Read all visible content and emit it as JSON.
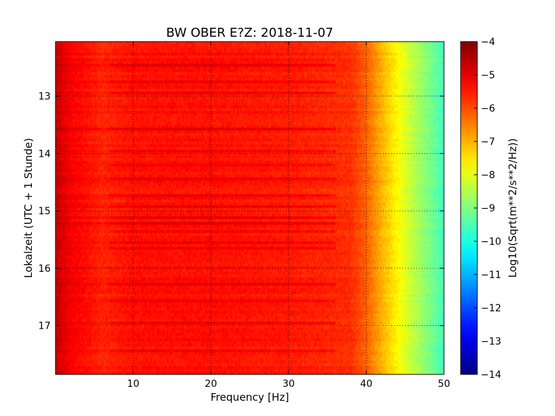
{
  "chart_data": {
    "type": "heatmap",
    "title": "BW OBER E?Z: 2018-11-07",
    "xlabel": "Frequency [Hz]",
    "ylabel": "Lokalzeit (UTC + 1 Stunde)",
    "xlim": [
      0,
      50
    ],
    "ylim": [
      12.05,
      17.85
    ],
    "y_inverted": true,
    "x_ticks": [
      10,
      20,
      30,
      40,
      50
    ],
    "y_ticks": [
      13,
      14,
      15,
      16,
      17
    ],
    "grid": true,
    "colormap": "jet",
    "colorbar": {
      "label": "Log10(Sqrt(m**2/s**2/Hz))",
      "range": [
        -14,
        -4
      ],
      "ticks": [
        -4,
        -5,
        -6,
        -7,
        -8,
        -9,
        -10,
        -11,
        -12,
        -13,
        -14
      ]
    },
    "level_vs_frequency": {
      "frequency_hz": [
        0,
        2,
        6,
        10,
        20,
        30,
        38,
        40,
        42,
        44,
        46,
        48,
        50
      ],
      "log10_amplitude": [
        -4.7,
        -5.2,
        -5.6,
        -5.4,
        -5.4,
        -5.5,
        -5.7,
        -6.2,
        -7.0,
        -7.7,
        -8.4,
        -9.0,
        -9.6
      ]
    },
    "dark_bands_hours": [
      12.45,
      12.75,
      12.95,
      13.55,
      13.95,
      14.22,
      14.42,
      14.72,
      14.92,
      15.1,
      15.22,
      15.35,
      15.55,
      15.65,
      16.3,
      16.55,
      16.95,
      17.45
    ]
  }
}
